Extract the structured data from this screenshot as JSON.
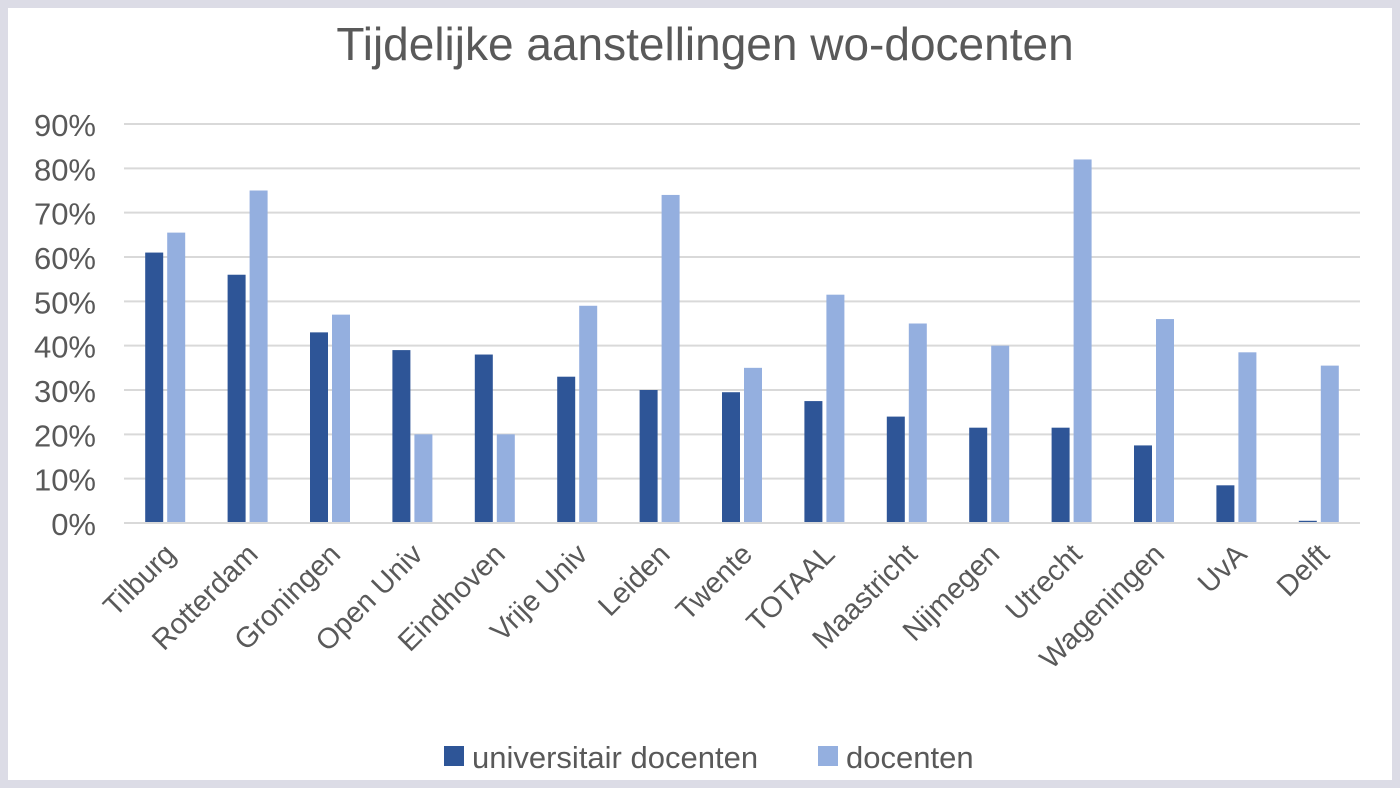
{
  "chart_data": {
    "type": "bar",
    "title": "Tijdelijke aanstellingen wo-docenten",
    "xlabel": "",
    "ylabel": "",
    "categories": [
      "Tilburg",
      "Rotterdam",
      "Groningen",
      "Open Univ",
      "Eindhoven",
      "Vrije Univ",
      "Leiden",
      "Twente",
      "TOTAAL",
      "Maastricht",
      "Nijmegen",
      "Utrecht",
      "Wageningen",
      "UvA",
      "Delft"
    ],
    "series": [
      {
        "name": "universitair docenten",
        "color": "#2e5597",
        "values": [
          61,
          56,
          43,
          39,
          38,
          33,
          30,
          29.5,
          27.5,
          24,
          21.5,
          21.5,
          17.5,
          8.5,
          0.5
        ]
      },
      {
        "name": "docenten",
        "color": "#94afdf",
        "values": [
          65.5,
          75,
          47,
          20,
          20,
          49,
          74,
          35,
          51.5,
          45,
          40,
          82,
          46,
          38.5,
          35.5
        ]
      }
    ],
    "ylim": [
      0,
      90
    ],
    "y_ticks": [
      0,
      10,
      20,
      30,
      40,
      50,
      60,
      70,
      80,
      90
    ],
    "y_tick_labels": [
      "0%",
      "10%",
      "20%",
      "30%",
      "40%",
      "50%",
      "60%",
      "70%",
      "80%",
      "90%"
    ],
    "grid": true,
    "legend_position": "bottom"
  }
}
